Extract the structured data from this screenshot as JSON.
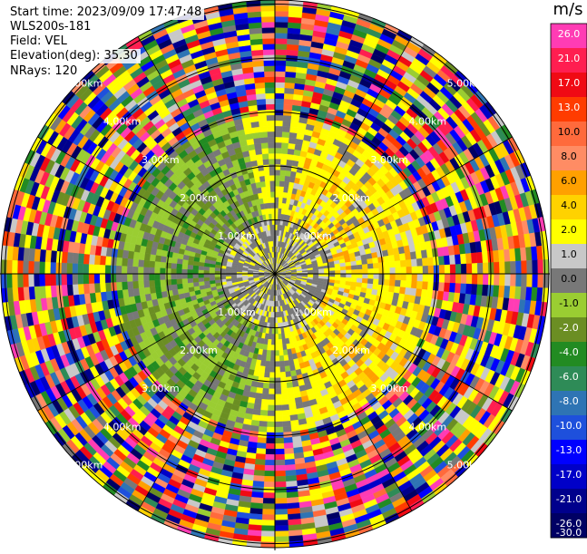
{
  "header": {
    "start_time": "Start time: 2023/09/09 17:47:48",
    "instrument": "WLS200s-181",
    "field": "Field: VEL",
    "elevation": "Elevation(deg): 35.30",
    "nrays": "NRays: 120"
  },
  "chart_data": {
    "type": "heatmap",
    "subtype": "ppi-polar",
    "field": "VEL",
    "units": "m/s",
    "n_rays": 120,
    "range_rings_km": [
      1.0,
      2.0,
      3.0,
      4.0,
      5.0
    ],
    "ring_labels": [
      "1.00km",
      "2.00km",
      "3.00km",
      "4.00km",
      "5.00km"
    ],
    "colorbar": {
      "unit": "m/s",
      "ticks": [
        "26.0",
        "21.0",
        "17.0",
        "13.0",
        "10.0",
        "8.0",
        "6.0",
        "4.0",
        "2.0",
        "1.0",
        "0.0",
        "-1.0",
        "-2.0",
        "-4.0",
        "-6.0",
        "-8.0",
        "-10.0",
        "-13.0",
        "-17.0",
        "-21.0",
        "-26.0",
        "-30.0"
      ],
      "colors": [
        "#ff3cb4",
        "#ff1e50",
        "#f00a14",
        "#ff3c00",
        "#ff6a3c",
        "#ff8c64",
        "#ffa000",
        "#ffd200",
        "#ffff00",
        "#c8c8c8",
        "#787878",
        "#9acd32",
        "#6b8e23",
        "#228b22",
        "#2e8b57",
        "#2e74b4",
        "#1e50dc",
        "#0000ff",
        "#0000c8",
        "#00008c",
        "#000064"
      ]
    }
  }
}
